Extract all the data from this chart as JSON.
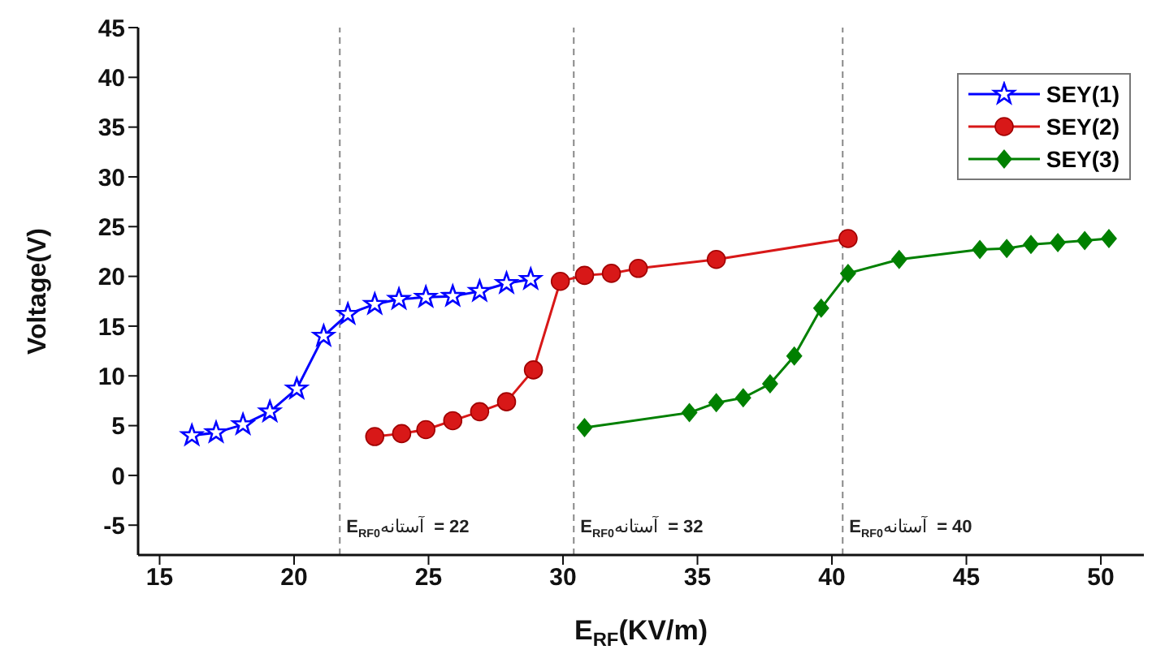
{
  "chart_data": {
    "type": "line",
    "xlabel": "E$_{RF}$(KV/m)",
    "ylabel": "Voltage(V)",
    "xlim": [
      14.2,
      51.6
    ],
    "xticks": [
      15,
      20,
      25,
      30,
      35,
      40,
      45,
      50
    ],
    "ylim": [
      -8,
      45
    ],
    "yticks": [
      -5,
      0,
      5,
      10,
      15,
      20,
      25,
      30,
      35,
      40,
      45
    ],
    "grid": false,
    "legend": "top right",
    "line_style": "solid",
    "series": [
      {
        "name": "SEY(1)",
        "color": "#0000ff",
        "marker": "star",
        "x": [
          16.2,
          17.1,
          18.1,
          19.1,
          20.1,
          21.1,
          22.0,
          23.0,
          23.9,
          24.9,
          25.9,
          26.9,
          27.9,
          28.8
        ],
        "values": [
          4.0,
          4.3,
          5.1,
          6.4,
          8.7,
          14.0,
          16.2,
          17.2,
          17.7,
          17.9,
          18.0,
          18.5,
          19.3,
          19.7
        ]
      },
      {
        "name": "SEY(2)",
        "color": "#d81818",
        "marker": "circle",
        "x": [
          23.0,
          24.0,
          24.9,
          25.9,
          26.9,
          27.9,
          28.9,
          29.9,
          30.8,
          31.8,
          32.8,
          35.7,
          40.6
        ],
        "values": [
          3.9,
          4.2,
          4.6,
          5.5,
          6.4,
          7.4,
          10.6,
          19.5,
          20.1,
          20.3,
          20.8,
          21.7,
          23.8
        ]
      },
      {
        "name": "SEY(3)",
        "color": "#008000",
        "marker": "diamond",
        "x": [
          30.8,
          34.7,
          35.7,
          36.7,
          37.7,
          38.6,
          39.6,
          40.6,
          42.5,
          45.5,
          46.5,
          47.4,
          48.4,
          49.4,
          50.3
        ],
        "values": [
          4.8,
          6.3,
          7.3,
          7.8,
          9.2,
          12.0,
          16.8,
          20.3,
          21.7,
          22.7,
          22.8,
          23.2,
          23.4,
          23.6,
          23.8
        ]
      }
    ],
    "ref_lines": [
      {
        "axis": "x",
        "value": 21.7,
        "color": "#888888",
        "line_style": "dashed"
      },
      {
        "axis": "x",
        "value": 30.4,
        "color": "#888888",
        "line_style": "dashed"
      },
      {
        "axis": "x",
        "value": 40.4,
        "color": "#888888",
        "line_style": "dashed"
      }
    ],
    "annotations": [
      "E$_{RF0}$آستانه  = 22",
      "E$_{RF0}$آستانه  = 32",
      "E$_{RF0}$آستانه  = 40"
    ]
  }
}
